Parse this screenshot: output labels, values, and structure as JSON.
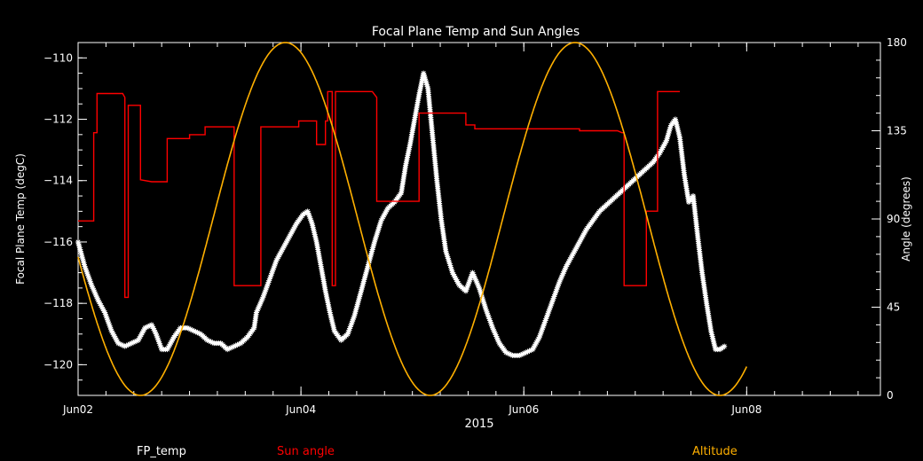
{
  "chart_data": {
    "type": "line",
    "title": "Focal Plane Temp and Sun Angles",
    "xlabel": "2015",
    "ylabel": "Focal Plane Temp (degC)",
    "y2label": "Angle (degrees)",
    "x_ticks": [
      "Jun02",
      "Jun04",
      "Jun06",
      "Jun08"
    ],
    "xlim_days": [
      2.0,
      9.2
    ],
    "ylim": [
      -121,
      -109.5
    ],
    "y_ticks": [
      -110,
      -112,
      -114,
      -116,
      -118,
      -120
    ],
    "y2lim": [
      0,
      180
    ],
    "y2_ticks": [
      0,
      45,
      90,
      135,
      180
    ],
    "colors": {
      "fp_temp": "#ffffff",
      "sun_angle": "#ff0000",
      "altitude": "#ffb000",
      "axes": "#ffffff"
    },
    "legend": [
      "FP_temp",
      "Sun angle",
      "Altitude"
    ],
    "series": [
      {
        "name": "FP_temp",
        "axis": "left",
        "style": "stars",
        "points": [
          [
            2.0,
            -116.0
          ],
          [
            2.06,
            -116.8
          ],
          [
            2.12,
            -117.4
          ],
          [
            2.18,
            -117.9
          ],
          [
            2.24,
            -118.3
          ],
          [
            2.3,
            -118.9
          ],
          [
            2.36,
            -119.3
          ],
          [
            2.42,
            -119.4
          ],
          [
            2.48,
            -119.3
          ],
          [
            2.54,
            -119.2
          ],
          [
            2.6,
            -118.8
          ],
          [
            2.66,
            -118.7
          ],
          [
            2.7,
            -119.0
          ],
          [
            2.75,
            -119.5
          ],
          [
            2.8,
            -119.5
          ],
          [
            2.86,
            -119.1
          ],
          [
            2.92,
            -118.8
          ],
          [
            2.98,
            -118.8
          ],
          [
            3.04,
            -118.9
          ],
          [
            3.1,
            -119.0
          ],
          [
            3.16,
            -119.2
          ],
          [
            3.22,
            -119.3
          ],
          [
            3.28,
            -119.3
          ],
          [
            3.34,
            -119.5
          ],
          [
            3.4,
            -119.4
          ],
          [
            3.46,
            -119.3
          ],
          [
            3.52,
            -119.1
          ],
          [
            3.58,
            -118.8
          ],
          [
            3.6,
            -118.3
          ],
          [
            3.66,
            -117.8
          ],
          [
            3.72,
            -117.2
          ],
          [
            3.78,
            -116.6
          ],
          [
            3.84,
            -116.2
          ],
          [
            3.9,
            -115.8
          ],
          [
            3.96,
            -115.4
          ],
          [
            4.02,
            -115.1
          ],
          [
            4.06,
            -115.0
          ],
          [
            4.1,
            -115.4
          ],
          [
            4.14,
            -116.0
          ],
          [
            4.18,
            -116.8
          ],
          [
            4.22,
            -117.6
          ],
          [
            4.26,
            -118.3
          ],
          [
            4.3,
            -118.9
          ],
          [
            4.36,
            -119.2
          ],
          [
            4.42,
            -119.0
          ],
          [
            4.48,
            -118.4
          ],
          [
            4.54,
            -117.6
          ],
          [
            4.6,
            -116.8
          ],
          [
            4.66,
            -116.0
          ],
          [
            4.72,
            -115.3
          ],
          [
            4.78,
            -114.9
          ],
          [
            4.84,
            -114.7
          ],
          [
            4.9,
            -114.4
          ],
          [
            4.94,
            -113.5
          ],
          [
            4.98,
            -112.8
          ],
          [
            5.02,
            -112.0
          ],
          [
            5.06,
            -111.2
          ],
          [
            5.1,
            -110.5
          ],
          [
            5.14,
            -111.0
          ],
          [
            5.18,
            -112.5
          ],
          [
            5.22,
            -114.0
          ],
          [
            5.26,
            -115.3
          ],
          [
            5.3,
            -116.3
          ],
          [
            5.36,
            -117.0
          ],
          [
            5.42,
            -117.4
          ],
          [
            5.48,
            -117.6
          ],
          [
            5.54,
            -117.0
          ],
          [
            5.6,
            -117.5
          ],
          [
            5.66,
            -118.2
          ],
          [
            5.72,
            -118.8
          ],
          [
            5.78,
            -119.3
          ],
          [
            5.84,
            -119.6
          ],
          [
            5.9,
            -119.7
          ],
          [
            5.96,
            -119.7
          ],
          [
            6.02,
            -119.6
          ],
          [
            6.08,
            -119.5
          ],
          [
            6.14,
            -119.1
          ],
          [
            6.2,
            -118.5
          ],
          [
            6.26,
            -117.9
          ],
          [
            6.32,
            -117.3
          ],
          [
            6.38,
            -116.8
          ],
          [
            6.44,
            -116.4
          ],
          [
            6.5,
            -116.0
          ],
          [
            6.56,
            -115.6
          ],
          [
            6.62,
            -115.3
          ],
          [
            6.68,
            -115.0
          ],
          [
            6.74,
            -114.8
          ],
          [
            6.8,
            -114.6
          ],
          [
            6.86,
            -114.4
          ],
          [
            6.92,
            -114.2
          ],
          [
            6.98,
            -114.0
          ],
          [
            7.04,
            -113.8
          ],
          [
            7.1,
            -113.6
          ],
          [
            7.16,
            -113.4
          ],
          [
            7.22,
            -113.1
          ],
          [
            7.28,
            -112.7
          ],
          [
            7.32,
            -112.2
          ],
          [
            7.36,
            -112.0
          ],
          [
            7.4,
            -112.6
          ],
          [
            7.44,
            -113.8
          ],
          [
            7.48,
            -114.7
          ],
          [
            7.52,
            -114.5
          ],
          [
            7.56,
            -115.8
          ],
          [
            7.6,
            -117.0
          ],
          [
            7.64,
            -118.0
          ],
          [
            7.68,
            -118.9
          ],
          [
            7.72,
            -119.5
          ],
          [
            7.76,
            -119.5
          ],
          [
            7.8,
            -119.4
          ]
        ]
      },
      {
        "name": "Sun angle",
        "axis": "right",
        "style": "line",
        "points": [
          [
            2.0,
            89
          ],
          [
            2.14,
            89
          ],
          [
            2.14,
            134
          ],
          [
            2.17,
            134
          ],
          [
            2.17,
            154
          ],
          [
            2.4,
            154
          ],
          [
            2.42,
            152
          ],
          [
            2.42,
            50
          ],
          [
            2.45,
            50
          ],
          [
            2.45,
            148
          ],
          [
            2.56,
            148
          ],
          [
            2.56,
            110
          ],
          [
            2.66,
            109
          ],
          [
            2.8,
            109
          ],
          [
            2.8,
            131
          ],
          [
            3.0,
            131
          ],
          [
            3.0,
            133
          ],
          [
            3.14,
            133
          ],
          [
            3.14,
            137
          ],
          [
            3.4,
            137
          ],
          [
            3.4,
            56
          ],
          [
            3.64,
            56
          ],
          [
            3.64,
            137
          ],
          [
            3.98,
            137
          ],
          [
            3.98,
            140
          ],
          [
            4.14,
            140
          ],
          [
            4.14,
            128
          ],
          [
            4.22,
            128
          ],
          [
            4.22,
            140
          ],
          [
            4.24,
            140
          ],
          [
            4.24,
            155
          ],
          [
            4.28,
            155
          ],
          [
            4.28,
            56
          ],
          [
            4.31,
            56
          ],
          [
            4.31,
            155
          ],
          [
            4.64,
            155
          ],
          [
            4.68,
            152
          ],
          [
            4.68,
            99
          ],
          [
            5.06,
            99
          ],
          [
            5.06,
            144
          ],
          [
            5.48,
            144
          ],
          [
            5.48,
            138
          ],
          [
            5.56,
            138
          ],
          [
            5.56,
            136
          ],
          [
            6.5,
            136
          ],
          [
            6.5,
            135
          ],
          [
            6.84,
            135
          ],
          [
            6.88,
            134
          ],
          [
            6.9,
            134
          ],
          [
            6.9,
            56
          ],
          [
            7.1,
            56
          ],
          [
            7.1,
            94
          ],
          [
            7.2,
            94
          ],
          [
            7.2,
            155
          ],
          [
            7.4,
            155
          ]
        ]
      },
      {
        "name": "Altitude",
        "axis": "right",
        "style": "curve",
        "period_days": 2.6,
        "perigee_days": [
          2.56,
          5.16,
          7.76
        ],
        "min": 0,
        "max": 180,
        "x_range": [
          2.0,
          8.0
        ]
      }
    ]
  }
}
